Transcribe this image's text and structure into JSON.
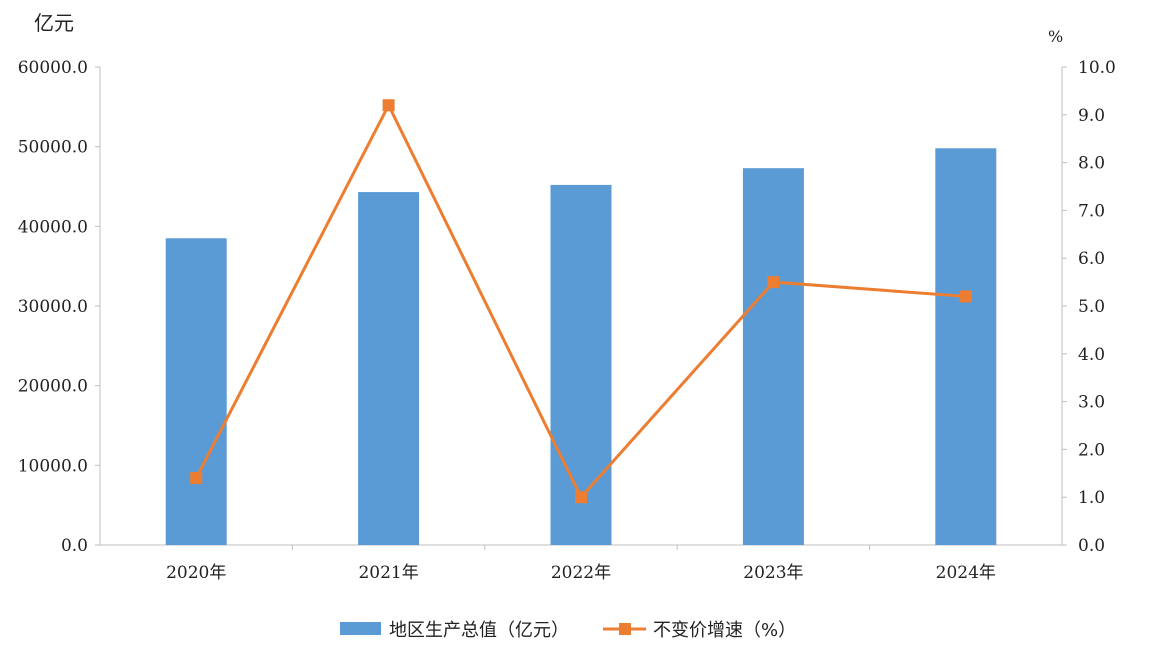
{
  "chart_data": {
    "type": "bar+line",
    "title": "",
    "categories": [
      "2020年",
      "2021年",
      "2022年",
      "2023年",
      "2024年"
    ],
    "left_axis": {
      "unit_label": "亿元",
      "ylim": [
        0,
        60000
      ],
      "ticks": [
        "0.0",
        "10000.0",
        "20000.0",
        "30000.0",
        "40000.0",
        "50000.0",
        "60000.0"
      ]
    },
    "right_axis": {
      "unit_label": "%",
      "ylim": [
        0,
        10
      ],
      "ticks": [
        "0.0",
        "1.0",
        "2.0",
        "3.0",
        "4.0",
        "5.0",
        "6.0",
        "7.0",
        "8.0",
        "9.0",
        "10.0"
      ]
    },
    "series": [
      {
        "name": "地区生产总值（亿元）",
        "type": "bar",
        "axis": "left",
        "color": "#5B9BD5",
        "values": [
          38500,
          44300,
          45200,
          47300,
          49800
        ]
      },
      {
        "name": "不变价增速（%）",
        "type": "line",
        "axis": "right",
        "color": "#ED7D31",
        "marker": "square",
        "values": [
          1.4,
          9.2,
          1.0,
          5.5,
          5.2
        ]
      }
    ],
    "grid": false,
    "legend": "bottom"
  }
}
